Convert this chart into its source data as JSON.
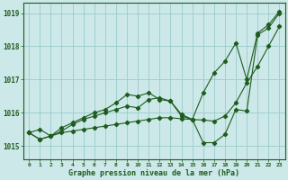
{
  "title": "Graphe pression niveau de la mer (hPa)",
  "xlabel_ticks": [
    0,
    1,
    2,
    3,
    4,
    5,
    6,
    7,
    8,
    9,
    10,
    11,
    12,
    13,
    14,
    15,
    16,
    17,
    18,
    19,
    20,
    21,
    22,
    23
  ],
  "ylim": [
    1014.6,
    1019.3
  ],
  "yticks": [
    1015,
    1016,
    1017,
    1018,
    1019
  ],
  "bg_color": "#cce8e8",
  "grid_color": "#99cccc",
  "line_color": "#1f5c1f",
  "figsize": [
    3.2,
    2.0
  ],
  "dpi": 100,
  "series": {
    "line1_top": [
      1015.4,
      1015.5,
      1015.3,
      1015.55,
      1015.7,
      1015.85,
      1016.0,
      1016.1,
      1016.3,
      1016.55,
      1016.5,
      1016.6,
      1016.4,
      1016.35,
      1015.9,
      1015.8,
      1016.6,
      1017.2,
      1017.55,
      1018.1,
      1017.0,
      1018.4,
      1018.65,
      1019.05
    ],
    "line2_wave": [
      1015.4,
      1015.2,
      1015.3,
      1015.45,
      1015.65,
      1015.8,
      1015.9,
      1016.0,
      1016.1,
      1016.2,
      1016.15,
      1016.4,
      1016.45,
      1016.35,
      1015.95,
      1015.8,
      1015.1,
      1015.1,
      1015.35,
      1016.1,
      1016.05,
      1018.35,
      1018.55,
      1019.0
    ],
    "line3_bot": [
      1015.4,
      1015.2,
      1015.3,
      1015.4,
      1015.45,
      1015.5,
      1015.55,
      1015.6,
      1015.65,
      1015.7,
      1015.75,
      1015.8,
      1015.85,
      1015.85,
      1015.82,
      1015.8,
      1015.78,
      1015.75,
      1015.9,
      1016.3,
      1016.9,
      1017.4,
      1018.0,
      1018.6
    ]
  }
}
